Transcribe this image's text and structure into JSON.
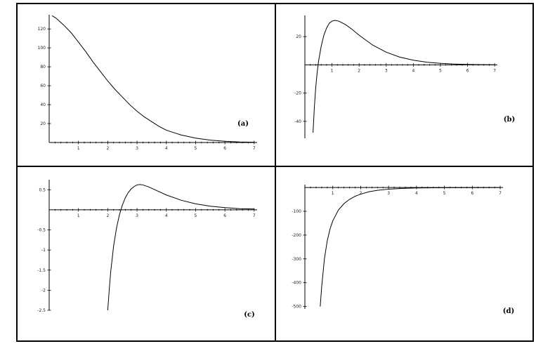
{
  "chart_data": [
    {
      "type": "line",
      "panel_label": "(a)",
      "xlim": [
        0,
        7.1
      ],
      "ylim": [
        0,
        135
      ],
      "x_ticks": [
        1,
        2,
        3,
        4,
        5,
        6,
        7
      ],
      "y_ticks": [
        20,
        40,
        60,
        80,
        100,
        120
      ],
      "x_tick_labels": [
        "1",
        "2",
        "3",
        "4",
        "5",
        "6",
        "7"
      ],
      "y_tick_labels": [
        "20",
        "40",
        "60",
        "80",
        "100",
        "120"
      ],
      "series": [
        {
          "x": [
            0.1,
            0.25,
            0.5,
            0.75,
            1.0,
            1.25,
            1.5,
            1.75,
            2.0,
            2.25,
            2.5,
            2.75,
            3.0,
            3.25,
            3.5,
            3.75,
            4.0,
            4.5,
            5.0,
            5.5,
            6.0,
            6.5,
            7.0
          ],
          "y": [
            134,
            131,
            124,
            116,
            106,
            96,
            85,
            75,
            65,
            56,
            48,
            40,
            33,
            27,
            22,
            17,
            13,
            8,
            4.6,
            2.5,
            1.3,
            0.6,
            0.3
          ]
        }
      ]
    },
    {
      "type": "line",
      "panel_label": "(b)",
      "xlim": [
        0,
        7.1
      ],
      "ylim": [
        -52,
        35
      ],
      "x_ticks": [
        1,
        2,
        3,
        4,
        5,
        6,
        7
      ],
      "y_ticks": [
        20,
        -20,
        -40
      ],
      "x_tick_labels": [
        "1",
        "2",
        "3",
        "4",
        "5",
        "6",
        "7"
      ],
      "y_tick_labels": [
        "20",
        "-20",
        "-40"
      ],
      "series": [
        {
          "x": [
            0.3,
            0.35,
            0.4,
            0.45,
            0.5,
            0.6,
            0.7,
            0.8,
            0.9,
            1.0,
            1.1,
            1.25,
            1.5,
            1.75,
            2.0,
            2.5,
            3.0,
            3.5,
            4.0,
            4.5,
            5.0,
            5.5,
            6.0,
            6.5,
            7.0
          ],
          "y": [
            -48,
            -30,
            -16,
            -6,
            2,
            13,
            21,
            26,
            29.5,
            31,
            31.5,
            31,
            28.5,
            25,
            21,
            14,
            9,
            5.5,
            3.3,
            1.9,
            1.1,
            0.6,
            0.3,
            0.15,
            0.08
          ]
        }
      ]
    },
    {
      "type": "line",
      "panel_label": "(c)",
      "xlim": [
        0,
        7.1
      ],
      "ylim": [
        -2.5,
        0.75
      ],
      "x_ticks": [
        1,
        2,
        3,
        4,
        5,
        6,
        7
      ],
      "y_ticks": [
        0.5,
        -0.5,
        -1,
        -1.5,
        -2,
        -2.5
      ],
      "x_tick_labels": [
        "1",
        "2",
        "3",
        "4",
        "5",
        "6",
        "7"
      ],
      "y_tick_labels": [
        "0.5",
        "-0.5",
        "-1",
        "-1.5",
        "-2",
        "-2.5"
      ],
      "series": [
        {
          "x": [
            2.0,
            2.05,
            2.1,
            2.2,
            2.3,
            2.4,
            2.5,
            2.6,
            2.7,
            2.8,
            2.9,
            3.0,
            3.1,
            3.2,
            3.4,
            3.7,
            4.0,
            4.5,
            5.0,
            5.5,
            6.0,
            6.5,
            7.0
          ],
          "y": [
            -2.5,
            -2.0,
            -1.55,
            -0.9,
            -0.45,
            -0.12,
            0.12,
            0.3,
            0.43,
            0.52,
            0.58,
            0.62,
            0.63,
            0.62,
            0.57,
            0.47,
            0.37,
            0.24,
            0.15,
            0.09,
            0.055,
            0.03,
            0.02
          ]
        }
      ]
    },
    {
      "type": "line",
      "panel_label": "(d)",
      "xlim": [
        0,
        7.1
      ],
      "ylim": [
        -510,
        12
      ],
      "x_ticks": [
        1,
        2,
        3,
        4,
        5,
        6,
        7
      ],
      "y_ticks": [
        -100,
        -200,
        -300,
        -400,
        -500
      ],
      "x_tick_labels": [
        "1",
        "2",
        "3",
        "4",
        "5",
        "6",
        "7"
      ],
      "y_tick_labels": [
        "-100",
        "-200",
        "-300",
        "-400",
        "-500"
      ],
      "series": [
        {
          "x": [
            0.55,
            0.6,
            0.7,
            0.8,
            0.9,
            1.0,
            1.2,
            1.4,
            1.6,
            1.8,
            2.0,
            2.3,
            2.6,
            3.0,
            3.5,
            4.0,
            5.0,
            6.0,
            7.0
          ],
          "y": [
            -500,
            -420,
            -300,
            -225,
            -175,
            -140,
            -95,
            -68,
            -50,
            -37,
            -28,
            -18,
            -12,
            -7,
            -4,
            -2.2,
            -0.9,
            -0.4,
            -0.2
          ]
        }
      ]
    }
  ]
}
